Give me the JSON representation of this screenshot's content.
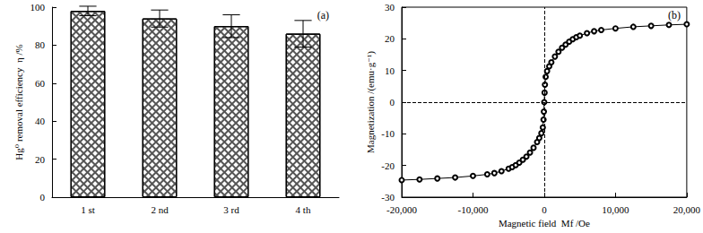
{
  "chart_data": [
    {
      "type": "bar",
      "title": "(a)",
      "categories": [
        "1 st",
        "2 nd",
        "3 rd",
        "4 th"
      ],
      "values": [
        98,
        94,
        90,
        86
      ],
      "errors": [
        2.5,
        4.5,
        6,
        7
      ],
      "ylabel": "Hg⁰ removal efficiency  η /%",
      "ylim": [
        0,
        100
      ],
      "yticks": [
        0,
        20,
        40,
        60,
        80,
        100
      ],
      "color": "#ffffff",
      "grid": false
    },
    {
      "type": "line",
      "title": "(b)",
      "marker": "circle",
      "line_style": "solid",
      "color": "#000000",
      "xlabel": "Magnetic field  Mf /Oe",
      "ylabel": "Magnetization /(emu·g⁻¹)",
      "x": [
        -20000,
        -17500,
        -15000,
        -12500,
        -10000,
        -8000,
        -7000,
        -6000,
        -5000,
        -4500,
        -4000,
        -3500,
        -3000,
        -2500,
        -2000,
        -1500,
        -1000,
        -700,
        -400,
        -200,
        -100,
        -50,
        0,
        50,
        100,
        200,
        400,
        700,
        1000,
        1500,
        2000,
        2500,
        3000,
        3500,
        4000,
        4500,
        5000,
        6000,
        7000,
        8000,
        10000,
        12500,
        15000,
        17500,
        20000
      ],
      "values": [
        -24.6,
        -24.4,
        -24.1,
        -23.8,
        -23.3,
        -22.8,
        -22.4,
        -21.8,
        -21.0,
        -20.5,
        -19.9,
        -19.1,
        -18.2,
        -17.2,
        -15.9,
        -14.4,
        -12.6,
        -11.3,
        -9.8,
        -8.0,
        -5.5,
        -3.0,
        0,
        3.0,
        5.5,
        8.0,
        9.8,
        11.3,
        12.6,
        14.4,
        15.9,
        17.2,
        18.2,
        19.1,
        19.9,
        20.5,
        21.0,
        21.8,
        22.4,
        22.8,
        23.3,
        23.8,
        24.1,
        24.4,
        24.6
      ],
      "xlim": [
        -20000,
        20000
      ],
      "xticks": [
        -20000,
        -10000,
        0,
        10000,
        20000
      ],
      "ylim": [
        -30,
        30
      ],
      "yticks": [
        -30,
        -20,
        -10,
        0,
        10,
        20,
        30
      ],
      "grid": false
    }
  ]
}
